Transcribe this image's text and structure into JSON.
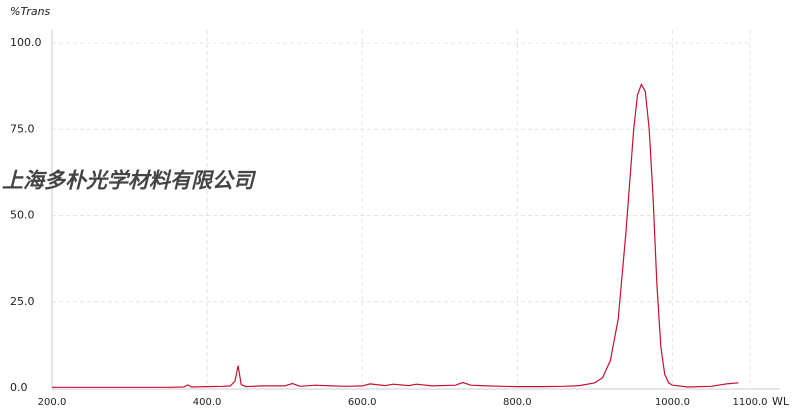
{
  "chart_data": {
    "type": "line",
    "annotation": "上海多朴光学材料有限公司",
    "y_label": "%Trans",
    "x_label": "WL",
    "xlim": [
      200,
      1100
    ],
    "ylim": [
      0,
      100
    ],
    "xticks": [
      {
        "value": 200,
        "label": "200.0"
      },
      {
        "value": 400,
        "label": "400.0"
      },
      {
        "value": 600,
        "label": "600.0"
      },
      {
        "value": 800,
        "label": "800.0"
      },
      {
        "value": 1000,
        "label": "1000.0"
      },
      {
        "value": 1100,
        "label": "1100.0"
      }
    ],
    "yticks": [
      {
        "value": 0,
        "label": "0.0"
      },
      {
        "value": 25,
        "label": "25.0"
      },
      {
        "value": 50,
        "label": "50.0"
      },
      {
        "value": 75,
        "label": "75.0"
      },
      {
        "value": 100,
        "label": "100.0"
      }
    ],
    "grid": true,
    "series": [
      {
        "color": "#c8102e",
        "x": [
          200,
          250,
          300,
          350,
          370,
          375,
          380,
          400,
          420,
          430,
          436,
          440,
          444,
          450,
          470,
          500,
          510,
          520,
          540,
          560,
          580,
          600,
          610,
          630,
          640,
          660,
          670,
          690,
          720,
          730,
          740,
          760,
          780,
          800,
          830,
          860,
          880,
          900,
          910,
          920,
          930,
          940,
          950,
          955,
          960,
          965,
          970,
          975,
          980,
          985,
          990,
          995,
          1000,
          1020,
          1050,
          1070,
          1085
        ],
        "values": [
          0.2,
          0.2,
          0.2,
          0.2,
          0.3,
          0.9,
          0.3,
          0.4,
          0.5,
          0.6,
          2,
          6.5,
          1,
          0.4,
          0.6,
          0.6,
          1.3,
          0.5,
          0.8,
          0.6,
          0.5,
          0.6,
          1.2,
          0.7,
          1.1,
          0.7,
          1.1,
          0.6,
          0.8,
          1.6,
          0.8,
          0.6,
          0.5,
          0.4,
          0.4,
          0.5,
          0.7,
          1.5,
          3,
          8,
          20,
          45,
          75,
          85,
          88,
          86,
          75,
          55,
          30,
          12,
          4,
          1.5,
          0.8,
          0.3,
          0.5,
          1.2,
          1.5
        ]
      }
    ]
  }
}
